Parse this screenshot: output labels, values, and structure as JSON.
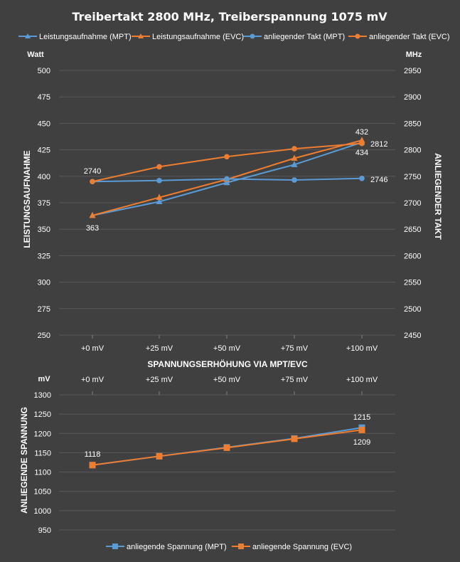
{
  "chart_data": [
    {
      "type": "line",
      "title": "Treibertakt 2800 MHz, Treiberspannung 1075 mV",
      "xlabel": "SPANNUNGSERHÖHUNG VIA MPT/EVC",
      "categories": [
        "+0 mV",
        "+25 mV",
        "+50 mV",
        "+75 mV",
        "+100 mV"
      ],
      "y_left": {
        "label": "LEISTUNGSAUFNAHME",
        "unit": "Watt",
        "range": [
          250,
          500
        ],
        "ticks": [
          "250",
          "275",
          "300",
          "325",
          "350",
          "375",
          "400",
          "425",
          "450",
          "475",
          "500"
        ]
      },
      "y_right": {
        "label": "ANLIEGENDER TAKT",
        "unit": "MHz",
        "range": [
          2450,
          2950
        ],
        "ticks": [
          "2450",
          "2500",
          "2550",
          "2600",
          "2650",
          "2700",
          "2750",
          "2800",
          "2850",
          "2900",
          "2950"
        ]
      },
      "legend_position": "top",
      "grid": true,
      "series": [
        {
          "name": "Leistungsaufnahme (MPT)",
          "axis": "left",
          "marker": "triangle",
          "color": "#5B9BD5",
          "values": [
            363,
            376,
            394,
            411,
            432
          ]
        },
        {
          "name": "Leistungsaufnahme (EVC)",
          "axis": "left",
          "marker": "triangle",
          "color": "#ED7D31",
          "values": [
            363,
            380,
            397,
            417,
            434
          ]
        },
        {
          "name": "anliegender Takt (MPT)",
          "axis": "right",
          "marker": "circle",
          "color": "#5B9BD5",
          "values": [
            2740,
            2742,
            2745,
            2743,
            2746
          ]
        },
        {
          "name": "anliegender Takt (EVC)",
          "axis": "right",
          "marker": "circle",
          "color": "#ED7D31",
          "values": [
            2740,
            2768,
            2787,
            2802,
            2812
          ]
        }
      ],
      "data_labels": [
        {
          "text": "2740"
        },
        {
          "text": "363"
        },
        {
          "text": "432"
        },
        {
          "text": "434"
        },
        {
          "text": "2812"
        },
        {
          "text": "2746"
        }
      ]
    },
    {
      "type": "line",
      "categories": [
        "+0 mV",
        "+25 mV",
        "+50 mV",
        "+75 mV",
        "+100 mV"
      ],
      "y": {
        "label": "ANLIEGENDE SPANNUNG",
        "unit": "mV",
        "range": [
          950,
          1300
        ],
        "ticks": [
          "950",
          "1000",
          "1050",
          "1100",
          "1150",
          "1200",
          "1250",
          "1300"
        ]
      },
      "legend_position": "bottom",
      "grid": true,
      "series": [
        {
          "name": "anliegende Spannung (MPT)",
          "marker": "square",
          "color": "#5B9BD5",
          "values": [
            1118,
            1141,
            1164,
            1187,
            1215
          ]
        },
        {
          "name": "anliegende Spannung (EVC)",
          "marker": "square",
          "color": "#ED7D31",
          "values": [
            1118,
            1141,
            1163,
            1186,
            1209
          ]
        }
      ],
      "data_labels": [
        {
          "text": "1118"
        },
        {
          "text": "1215"
        },
        {
          "text": "1209"
        }
      ]
    }
  ]
}
